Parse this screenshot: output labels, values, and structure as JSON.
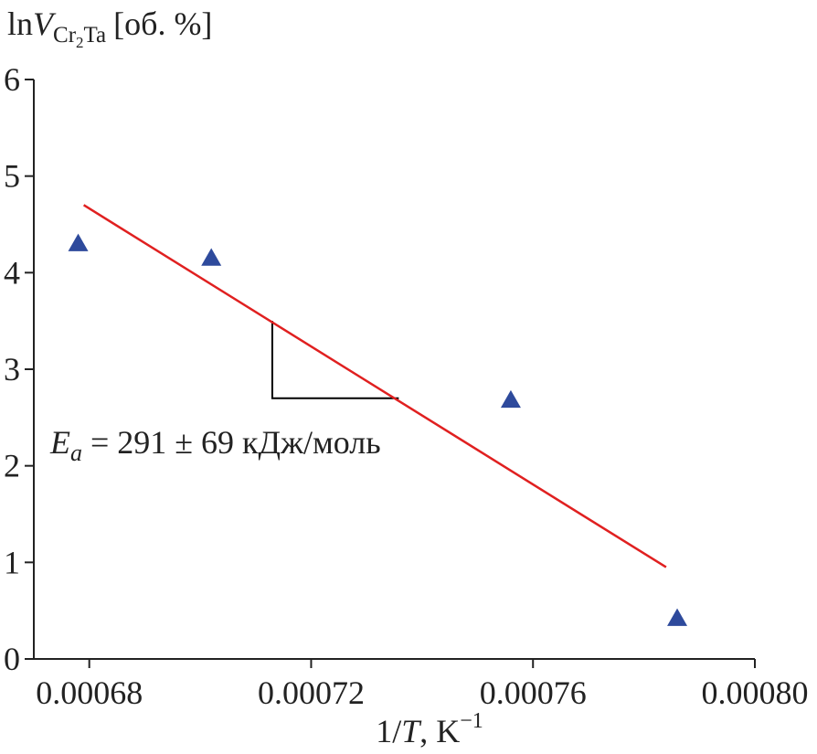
{
  "chart_data": {
    "type": "scatter",
    "ylabel": {
      "prefix": "ln",
      "var": "V",
      "sub_main": "Cr",
      "sub_index": "2",
      "sub_tail": "Ta",
      "units": "[об. %]"
    },
    "xlabel": {
      "prefix": "1/",
      "var": "T",
      "units": ", K",
      "sup": "−1"
    },
    "xlim": [
      0.00067,
      0.0008
    ],
    "ylim": [
      0,
      6
    ],
    "x_ticks": [
      0.00068,
      0.00072,
      0.00076,
      0.0008
    ],
    "x_tick_labels": [
      "0.00068",
      "0.00072",
      "0.00076",
      "0.00080"
    ],
    "y_ticks": [
      0,
      1,
      2,
      3,
      4,
      5,
      6
    ],
    "y_tick_labels": [
      "0",
      "1",
      "2",
      "3",
      "4",
      "5",
      "6"
    ],
    "points": {
      "x": [
        0.000678,
        0.000702,
        0.000756,
        0.000786
      ],
      "y": [
        4.3,
        4.15,
        2.68,
        0.42
      ],
      "marker": "triangle",
      "color": "#2e4a9c"
    },
    "fit_line": {
      "x": [
        0.000679,
        0.000784
      ],
      "y": [
        4.7,
        0.95
      ],
      "color": "#e02020"
    },
    "slope_triangle": {
      "x": [
        0.000713,
        0.0007358
      ],
      "y": [
        3.5,
        2.7
      ],
      "color": "#000000"
    },
    "annotation": {
      "var": "E",
      "sub": "a",
      "text": " = 291 ± 69 кДж/моль"
    },
    "grid": false,
    "legend": "none"
  }
}
